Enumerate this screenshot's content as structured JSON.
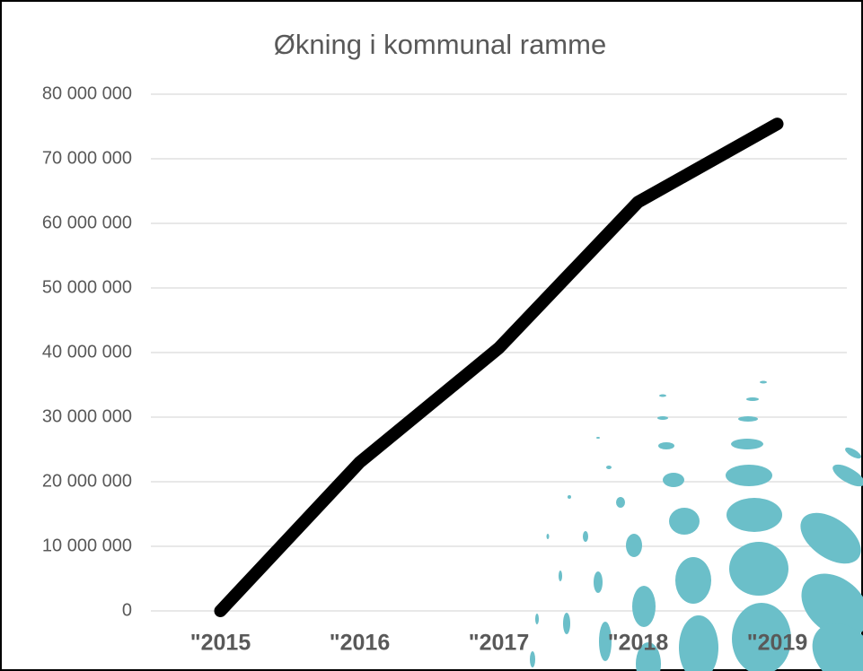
{
  "chart_data": {
    "type": "line",
    "title": "Økning i kommunal ramme",
    "categories": [
      "\"2015",
      "\"2016",
      "\"2017",
      "\"2018",
      "\"2019"
    ],
    "series": [
      {
        "color": "#000000",
        "values": [
          0,
          23000000,
          40700000,
          63300000,
          75400000
        ]
      }
    ],
    "ylim": [
      0,
      80000000
    ],
    "yticks": [
      0,
      {
        "value": 10000000,
        "label": "10 000 000"
      },
      {
        "value": 20000000,
        "label": "20 000 000"
      },
      {
        "value": 30000000,
        "label": "30 000 000"
      },
      {
        "value": 40000000,
        "label": "40 000 000"
      },
      {
        "value": 50000000,
        "label": "50 000 000"
      },
      {
        "value": 60000000,
        "label": "60 000 000"
      },
      {
        "value": 70000000,
        "label": "70 000 000"
      },
      {
        "value": 80000000,
        "label": "80 000 000"
      }
    ],
    "grid": true
  }
}
